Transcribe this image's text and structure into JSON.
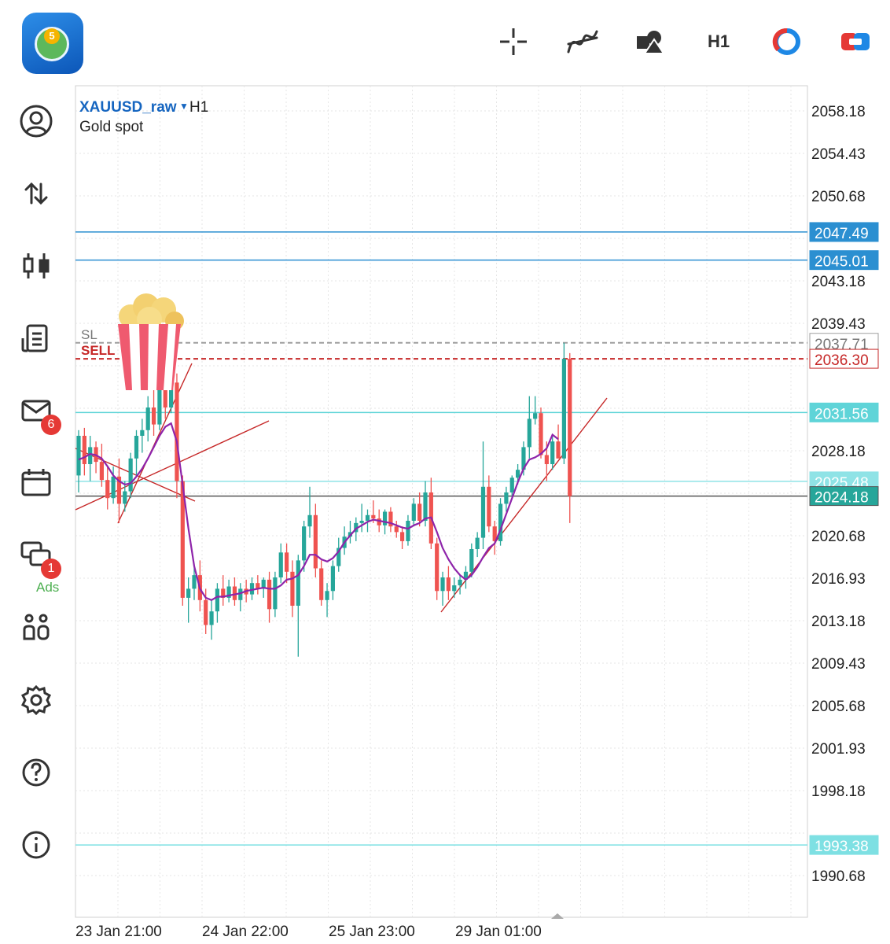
{
  "header": {
    "toolbar": [
      {
        "name": "crosshair-icon"
      },
      {
        "name": "indicators-icon"
      },
      {
        "name": "objects-icon"
      },
      {
        "name": "timeframe-button",
        "label": "H1"
      },
      {
        "name": "account-ring-icon"
      },
      {
        "name": "trade-toggle-icon"
      }
    ]
  },
  "sidebar": {
    "items": [
      {
        "name": "quotes-icon"
      },
      {
        "name": "trade-icon"
      },
      {
        "name": "chart-icon"
      },
      {
        "name": "history-icon"
      },
      {
        "name": "mail-icon",
        "badge": "6"
      },
      {
        "name": "calendar-icon",
        "label": "Ads"
      },
      {
        "name": "chat-icon",
        "badge": "1"
      },
      {
        "name": "community-icon"
      },
      {
        "name": "settings-icon"
      },
      {
        "name": "help-icon"
      },
      {
        "name": "info-icon"
      }
    ]
  },
  "chart": {
    "symbol": "XAUUSD_raw",
    "timeframe": "H1",
    "description": "Gold spot",
    "sl_label": "SL",
    "sell_label": "SELL",
    "price_axis": [
      "2058.18",
      "2054.43",
      "2050.68",
      "2043.18",
      "2039.43",
      "2028.18",
      "2020.68",
      "2016.93",
      "2013.18",
      "2009.43",
      "2005.68",
      "2001.93",
      "1998.18",
      "1990.68"
    ],
    "time_axis": [
      "23 Jan 21:00",
      "24 Jan 22:00",
      "25 Jan 23:00",
      "29 Jan 01:00"
    ],
    "price_lines": [
      {
        "price": 2047.49,
        "label": "2047.49",
        "color": "#2b8fd1",
        "style": "solid",
        "tag_bg": "#2b8fd1",
        "tag_fg": "#ffffff"
      },
      {
        "price": 2045.01,
        "label": "2045.01",
        "color": "#2b8fd1",
        "style": "solid",
        "tag_bg": "#2b8fd1",
        "tag_fg": "#ffffff"
      },
      {
        "price": 2037.71,
        "label": "2037.71",
        "color": "#9e9e9e",
        "style": "dash",
        "tag_bg": "#ffffff",
        "tag_fg": "#777777"
      },
      {
        "price": 2036.3,
        "label": "2036.30",
        "color": "#c62828",
        "style": "dash",
        "tag_bg": "#ffffff",
        "tag_fg": "#c62828"
      },
      {
        "price": 2031.56,
        "label": "2031.56",
        "color": "#5fd4d8",
        "style": "solid",
        "tag_bg": "#5fd4d8",
        "tag_fg": "#ffffff"
      },
      {
        "price": 2025.48,
        "label": "2025.48",
        "color": "#8fe3e6",
        "style": "solid",
        "tag_bg": "#8fe3e6",
        "tag_fg": "#ffffff"
      },
      {
        "price": 2024.18,
        "label": "2024.18",
        "color": "#555555",
        "style": "solid",
        "tag_bg": "#26a69a",
        "tag_fg": "#ffffff"
      },
      {
        "price": 1993.38,
        "label": "1993.38",
        "color": "#7ee0e3",
        "style": "solid",
        "tag_bg": "#7ee0e3",
        "tag_fg": "#ffffff"
      }
    ],
    "colors": {
      "bull": "#26a69a",
      "bear": "#ef5350",
      "ma": "#8e24aa",
      "trendline": "#c62828"
    }
  },
  "chart_data": {
    "type": "candlestick",
    "symbol": "XAUUSD_raw",
    "timeframe": "H1",
    "candles": [
      {
        "o": 2026.0,
        "h": 2030.0,
        "l": 2024.5,
        "c": 2029.5
      },
      {
        "o": 2029.5,
        "h": 2030.2,
        "l": 2026.0,
        "c": 2027.0
      },
      {
        "o": 2027.0,
        "h": 2029.5,
        "l": 2025.5,
        "c": 2028.5
      },
      {
        "o": 2028.5,
        "h": 2029.0,
        "l": 2026.2,
        "c": 2027.2
      },
      {
        "o": 2027.2,
        "h": 2028.8,
        "l": 2025.0,
        "c": 2025.6
      },
      {
        "o": 2025.6,
        "h": 2026.8,
        "l": 2023.0,
        "c": 2024.0
      },
      {
        "o": 2024.0,
        "h": 2026.8,
        "l": 2023.5,
        "c": 2025.9
      },
      {
        "o": 2025.9,
        "h": 2027.5,
        "l": 2021.8,
        "c": 2023.5
      },
      {
        "o": 2023.5,
        "h": 2025.5,
        "l": 2022.8,
        "c": 2024.6
      },
      {
        "o": 2024.6,
        "h": 2028.0,
        "l": 2024.0,
        "c": 2027.5
      },
      {
        "o": 2027.5,
        "h": 2030.0,
        "l": 2026.0,
        "c": 2029.5
      },
      {
        "o": 2029.5,
        "h": 2031.0,
        "l": 2028.0,
        "c": 2030.0
      },
      {
        "o": 2030.0,
        "h": 2033.0,
        "l": 2029.0,
        "c": 2032.0
      },
      {
        "o": 2032.0,
        "h": 2034.0,
        "l": 2029.5,
        "c": 2030.5
      },
      {
        "o": 2030.5,
        "h": 2035.0,
        "l": 2030.0,
        "c": 2033.8
      },
      {
        "o": 2033.8,
        "h": 2035.5,
        "l": 2031.0,
        "c": 2032.0
      },
      {
        "o": 2032.0,
        "h": 2034.8,
        "l": 2031.5,
        "c": 2034.2
      },
      {
        "o": 2034.2,
        "h": 2035.0,
        "l": 2024.0,
        "c": 2025.5
      },
      {
        "o": 2025.5,
        "h": 2026.0,
        "l": 2014.5,
        "c": 2015.2
      },
      {
        "o": 2015.2,
        "h": 2017.0,
        "l": 2013.0,
        "c": 2016.0
      },
      {
        "o": 2016.0,
        "h": 2018.0,
        "l": 2015.0,
        "c": 2017.2
      },
      {
        "o": 2017.2,
        "h": 2018.5,
        "l": 2014.0,
        "c": 2015.0
      },
      {
        "o": 2015.0,
        "h": 2016.0,
        "l": 2012.0,
        "c": 2012.8
      },
      {
        "o": 2012.8,
        "h": 2015.0,
        "l": 2011.5,
        "c": 2014.0
      },
      {
        "o": 2014.0,
        "h": 2016.5,
        "l": 2013.0,
        "c": 2016.0
      },
      {
        "o": 2016.0,
        "h": 2017.2,
        "l": 2014.5,
        "c": 2015.2
      },
      {
        "o": 2015.2,
        "h": 2016.8,
        "l": 2014.8,
        "c": 2016.2
      },
      {
        "o": 2016.2,
        "h": 2017.0,
        "l": 2014.5,
        "c": 2015.0
      },
      {
        "o": 2015.0,
        "h": 2016.5,
        "l": 2014.0,
        "c": 2016.0
      },
      {
        "o": 2016.0,
        "h": 2016.8,
        "l": 2014.8,
        "c": 2015.5
      },
      {
        "o": 2015.5,
        "h": 2017.0,
        "l": 2015.0,
        "c": 2016.5
      },
      {
        "o": 2016.5,
        "h": 2017.2,
        "l": 2015.5,
        "c": 2016.0
      },
      {
        "o": 2016.0,
        "h": 2017.0,
        "l": 2015.2,
        "c": 2016.8
      },
      {
        "o": 2016.8,
        "h": 2017.5,
        "l": 2013.0,
        "c": 2014.2
      },
      {
        "o": 2014.2,
        "h": 2017.5,
        "l": 2013.5,
        "c": 2017.0
      },
      {
        "o": 2017.0,
        "h": 2020.0,
        "l": 2016.5,
        "c": 2019.2
      },
      {
        "o": 2019.2,
        "h": 2020.0,
        "l": 2016.5,
        "c": 2017.5
      },
      {
        "o": 2017.5,
        "h": 2018.5,
        "l": 2013.5,
        "c": 2014.5
      },
      {
        "o": 2014.5,
        "h": 2019.0,
        "l": 2010.0,
        "c": 2018.5
      },
      {
        "o": 2018.5,
        "h": 2022.0,
        "l": 2017.5,
        "c": 2021.5
      },
      {
        "o": 2021.5,
        "h": 2025.0,
        "l": 2020.5,
        "c": 2022.5
      },
      {
        "o": 2022.5,
        "h": 2023.5,
        "l": 2017.0,
        "c": 2017.8
      },
      {
        "o": 2017.8,
        "h": 2018.5,
        "l": 2014.5,
        "c": 2015.0
      },
      {
        "o": 2015.0,
        "h": 2016.5,
        "l": 2013.5,
        "c": 2015.8
      },
      {
        "o": 2015.8,
        "h": 2018.5,
        "l": 2015.0,
        "c": 2018.0
      },
      {
        "o": 2018.0,
        "h": 2020.5,
        "l": 2017.5,
        "c": 2019.6
      },
      {
        "o": 2019.6,
        "h": 2021.5,
        "l": 2019.0,
        "c": 2020.6
      },
      {
        "o": 2020.6,
        "h": 2022.0,
        "l": 2020.0,
        "c": 2021.0
      },
      {
        "o": 2021.0,
        "h": 2022.3,
        "l": 2020.2,
        "c": 2021.8
      },
      {
        "o": 2021.8,
        "h": 2023.5,
        "l": 2021.0,
        "c": 2022.0
      },
      {
        "o": 2022.0,
        "h": 2023.0,
        "l": 2021.0,
        "c": 2022.5
      },
      {
        "o": 2022.5,
        "h": 2023.8,
        "l": 2021.8,
        "c": 2022.2
      },
      {
        "o": 2022.2,
        "h": 2023.0,
        "l": 2021.0,
        "c": 2021.6
      },
      {
        "o": 2021.6,
        "h": 2023.0,
        "l": 2020.8,
        "c": 2022.8
      },
      {
        "o": 2022.8,
        "h": 2023.2,
        "l": 2021.0,
        "c": 2021.5
      },
      {
        "o": 2021.5,
        "h": 2022.0,
        "l": 2020.5,
        "c": 2021.0
      },
      {
        "o": 2021.0,
        "h": 2021.5,
        "l": 2019.5,
        "c": 2020.2
      },
      {
        "o": 2020.2,
        "h": 2022.5,
        "l": 2019.8,
        "c": 2022.0
      },
      {
        "o": 2022.0,
        "h": 2024.0,
        "l": 2021.5,
        "c": 2023.5
      },
      {
        "o": 2023.5,
        "h": 2024.5,
        "l": 2021.5,
        "c": 2022.0
      },
      {
        "o": 2022.0,
        "h": 2025.5,
        "l": 2021.5,
        "c": 2024.5
      },
      {
        "o": 2024.5,
        "h": 2025.8,
        "l": 2019.5,
        "c": 2020.0
      },
      {
        "o": 2020.0,
        "h": 2020.5,
        "l": 2015.0,
        "c": 2015.8
      },
      {
        "o": 2015.8,
        "h": 2017.5,
        "l": 2014.5,
        "c": 2017.0
      },
      {
        "o": 2017.0,
        "h": 2018.0,
        "l": 2015.0,
        "c": 2015.8
      },
      {
        "o": 2015.8,
        "h": 2017.0,
        "l": 2015.2,
        "c": 2016.3
      },
      {
        "o": 2016.3,
        "h": 2017.2,
        "l": 2015.5,
        "c": 2016.8
      },
      {
        "o": 2016.8,
        "h": 2018.0,
        "l": 2016.0,
        "c": 2017.5
      },
      {
        "o": 2017.5,
        "h": 2020.0,
        "l": 2017.0,
        "c": 2019.5
      },
      {
        "o": 2019.5,
        "h": 2021.0,
        "l": 2018.8,
        "c": 2020.5
      },
      {
        "o": 2020.5,
        "h": 2029.0,
        "l": 2019.5,
        "c": 2025.0
      },
      {
        "o": 2025.0,
        "h": 2026.0,
        "l": 2021.0,
        "c": 2021.5
      },
      {
        "o": 2021.5,
        "h": 2022.0,
        "l": 2019.0,
        "c": 2020.2
      },
      {
        "o": 2020.2,
        "h": 2024.0,
        "l": 2019.8,
        "c": 2023.5
      },
      {
        "o": 2023.5,
        "h": 2025.0,
        "l": 2022.8,
        "c": 2024.5
      },
      {
        "o": 2024.5,
        "h": 2026.0,
        "l": 2024.0,
        "c": 2025.8
      },
      {
        "o": 2025.8,
        "h": 2027.0,
        "l": 2025.2,
        "c": 2026.5
      },
      {
        "o": 2026.5,
        "h": 2029.0,
        "l": 2026.0,
        "c": 2028.5
      },
      {
        "o": 2028.5,
        "h": 2033.0,
        "l": 2027.5,
        "c": 2031.0
      },
      {
        "o": 2031.0,
        "h": 2033.0,
        "l": 2030.5,
        "c": 2031.5
      },
      {
        "o": 2031.5,
        "h": 2032.0,
        "l": 2027.5,
        "c": 2027.8
      },
      {
        "o": 2027.8,
        "h": 2029.0,
        "l": 2025.5,
        "c": 2027.0
      },
      {
        "o": 2027.0,
        "h": 2029.5,
        "l": 2026.5,
        "c": 2029.0
      },
      {
        "o": 2029.0,
        "h": 2030.5,
        "l": 2027.5,
        "c": 2027.5
      },
      {
        "o": 2027.5,
        "h": 2037.71,
        "l": 2027.0,
        "c": 2036.3
      },
      {
        "o": 2036.3,
        "h": 2036.8,
        "l": 2021.8,
        "c": 2024.18
      }
    ],
    "moving_average": [
      2027.4,
      2027.6,
      2027.9,
      2027.8,
      2027.5,
      2026.8,
      2026.0,
      2025.5,
      2025.2,
      2025.3,
      2025.9,
      2026.6,
      2027.5,
      2028.5,
      2029.5,
      2030.3,
      2030.6,
      2029.0,
      2025.2,
      2021.3,
      2018.0,
      2016.0,
      2015.2,
      2015.0,
      2015.3,
      2015.3,
      2015.4,
      2015.5,
      2015.6,
      2015.8,
      2015.9,
      2016.0,
      2016.1,
      2016.0,
      2016.0,
      2016.3,
      2016.8,
      2016.9,
      2017.2,
      2018.0,
      2019.0,
      2019.0,
      2018.6,
      2018.4,
      2018.7,
      2019.3,
      2020.1,
      2020.7,
      2021.3,
      2021.6,
      2021.9,
      2022.1,
      2022.0,
      2021.9,
      2021.8,
      2021.6,
      2021.4,
      2021.3,
      2021.6,
      2021.8,
      2022.2,
      2022.3,
      2021.0,
      2019.6,
      2018.6,
      2017.8,
      2017.2,
      2016.8,
      2017.2,
      2017.9,
      2018.8,
      2019.6,
      2020.0,
      2021.2,
      2022.6,
      2024.0,
      2025.4,
      2026.6,
      2027.4,
      2027.6,
      2027.9,
      2028.4,
      2029.6,
      2029.2
    ],
    "ylim": [
      1988.5,
      2060.5
    ]
  }
}
